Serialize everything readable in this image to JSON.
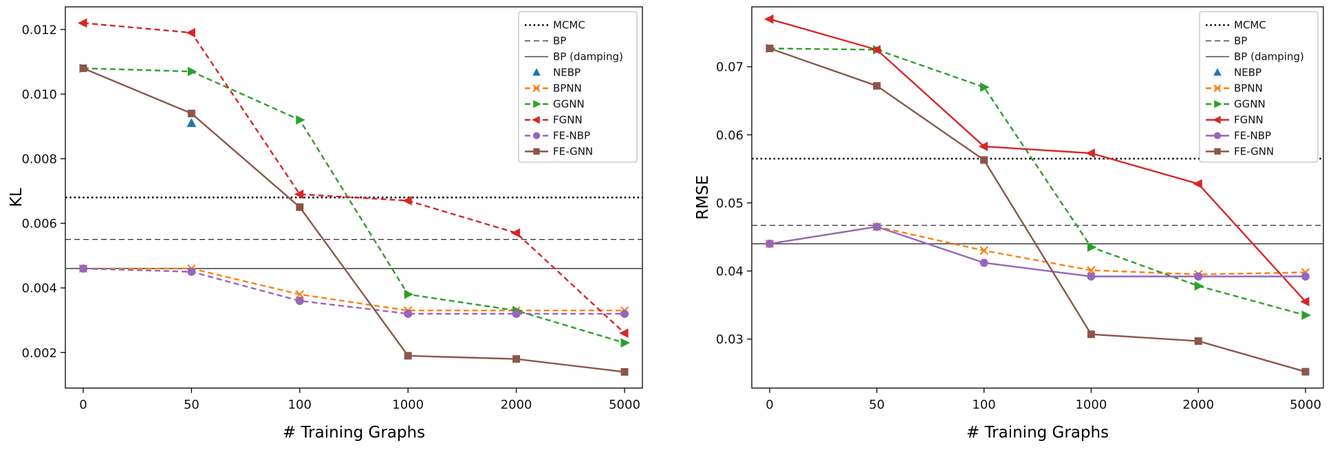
{
  "figure": {
    "background": "#ffffff"
  },
  "chart_data": [
    {
      "type": "line",
      "xlabel": "# Training Graphs",
      "ylabel": "KL",
      "categories": [
        "0",
        "50",
        "100",
        "1000",
        "2000",
        "5000"
      ],
      "ylim": [
        0.0009,
        0.0127
      ],
      "grid": false,
      "legend_position": "upper right",
      "yticks": [
        {
          "value": 0.002,
          "label": "0.002"
        },
        {
          "value": 0.004,
          "label": "0.004"
        },
        {
          "value": 0.006,
          "label": "0.006"
        },
        {
          "value": 0.008,
          "label": "0.008"
        },
        {
          "value": 0.01,
          "label": "0.010"
        },
        {
          "value": 0.012,
          "label": "0.012"
        }
      ],
      "reference_lines": [
        {
          "label": "MCMC",
          "value": 0.0068,
          "style": "dotted",
          "color": "#000000",
          "width": 2.4
        },
        {
          "label": "BP",
          "value": 0.0055,
          "style": "dashed",
          "color": "#2b2b2b",
          "width": 1.2
        },
        {
          "label": "BP (damping)",
          "value": 0.0046,
          "style": "solid",
          "color": "#4d4d4d",
          "width": 1.6
        }
      ],
      "series": [
        {
          "name": "NEBP",
          "color": "#1f77b4",
          "marker": "triangle-up",
          "line": "none",
          "values": [
            null,
            0.0091,
            null,
            null,
            null,
            null
          ]
        },
        {
          "name": "BPNN",
          "color": "#ff7f0e",
          "marker": "x",
          "line": "dashed",
          "values": [
            0.0046,
            0.0046,
            0.0038,
            0.0033,
            0.0033,
            0.0033
          ]
        },
        {
          "name": "GGNN",
          "color": "#2ca02c",
          "marker": "triangle-right",
          "line": "dashed",
          "values": [
            0.0108,
            0.0107,
            0.0092,
            0.0038,
            0.0033,
            0.0023
          ]
        },
        {
          "name": "FGNN",
          "color": "#d62728",
          "marker": "triangle-left",
          "line": "dashed",
          "values": [
            0.0122,
            0.0119,
            0.0069,
            0.0067,
            0.0057,
            0.0026
          ]
        },
        {
          "name": "FE-NBP",
          "color": "#9467bd",
          "marker": "circle",
          "line": "dashed",
          "values": [
            0.0046,
            0.0045,
            0.0036,
            0.0032,
            0.0032,
            0.0032
          ]
        },
        {
          "name": "FE-GNN",
          "color": "#8c564b",
          "marker": "square",
          "line": "solid",
          "values": [
            0.0108,
            0.0094,
            0.0065,
            0.0019,
            0.0018,
            0.0014
          ]
        }
      ]
    },
    {
      "type": "line",
      "xlabel": "# Training Graphs",
      "ylabel": "RMSE",
      "categories": [
        "0",
        "50",
        "100",
        "1000",
        "2000",
        "5000"
      ],
      "ylim": [
        0.0228,
        0.0788
      ],
      "grid": false,
      "legend_position": "upper right",
      "yticks": [
        {
          "value": 0.03,
          "label": "0.03"
        },
        {
          "value": 0.04,
          "label": "0.04"
        },
        {
          "value": 0.05,
          "label": "0.05"
        },
        {
          "value": 0.06,
          "label": "0.06"
        },
        {
          "value": 0.07,
          "label": "0.07"
        }
      ],
      "reference_lines": [
        {
          "label": "MCMC",
          "value": 0.0565,
          "style": "dotted",
          "color": "#000000",
          "width": 2.4
        },
        {
          "label": "BP",
          "value": 0.0467,
          "style": "dashed",
          "color": "#2b2b2b",
          "width": 1.2
        },
        {
          "label": "BP (damping)",
          "value": 0.044,
          "style": "solid",
          "color": "#4d4d4d",
          "width": 1.6
        }
      ],
      "series": [
        {
          "name": "NEBP",
          "color": "#1f77b4",
          "marker": "triangle-up",
          "line": "none",
          "values": [
            null,
            null,
            null,
            null,
            null,
            null
          ]
        },
        {
          "name": "BPNN",
          "color": "#ff7f0e",
          "marker": "x",
          "line": "dashed",
          "values": [
            0.044,
            0.0465,
            0.043,
            0.0401,
            0.0395,
            0.0398
          ]
        },
        {
          "name": "GGNN",
          "color": "#2ca02c",
          "marker": "triangle-right",
          "line": "dashed",
          "values": [
            0.0727,
            0.0725,
            0.067,
            0.0435,
            0.0378,
            0.0335
          ]
        },
        {
          "name": "FGNN",
          "color": "#d62728",
          "marker": "triangle-left",
          "line": "solid",
          "values": [
            0.077,
            0.0725,
            0.0583,
            0.0573,
            0.0528,
            0.0355
          ]
        },
        {
          "name": "FE-NBP",
          "color": "#9467bd",
          "marker": "circle",
          "line": "solid",
          "values": [
            0.044,
            0.0465,
            0.0412,
            0.0392,
            0.0392,
            0.0392
          ]
        },
        {
          "name": "FE-GNN",
          "color": "#8c564b",
          "marker": "square",
          "line": "solid",
          "values": [
            0.0727,
            0.0672,
            0.0563,
            0.0307,
            0.0297,
            0.0252
          ]
        }
      ]
    }
  ]
}
